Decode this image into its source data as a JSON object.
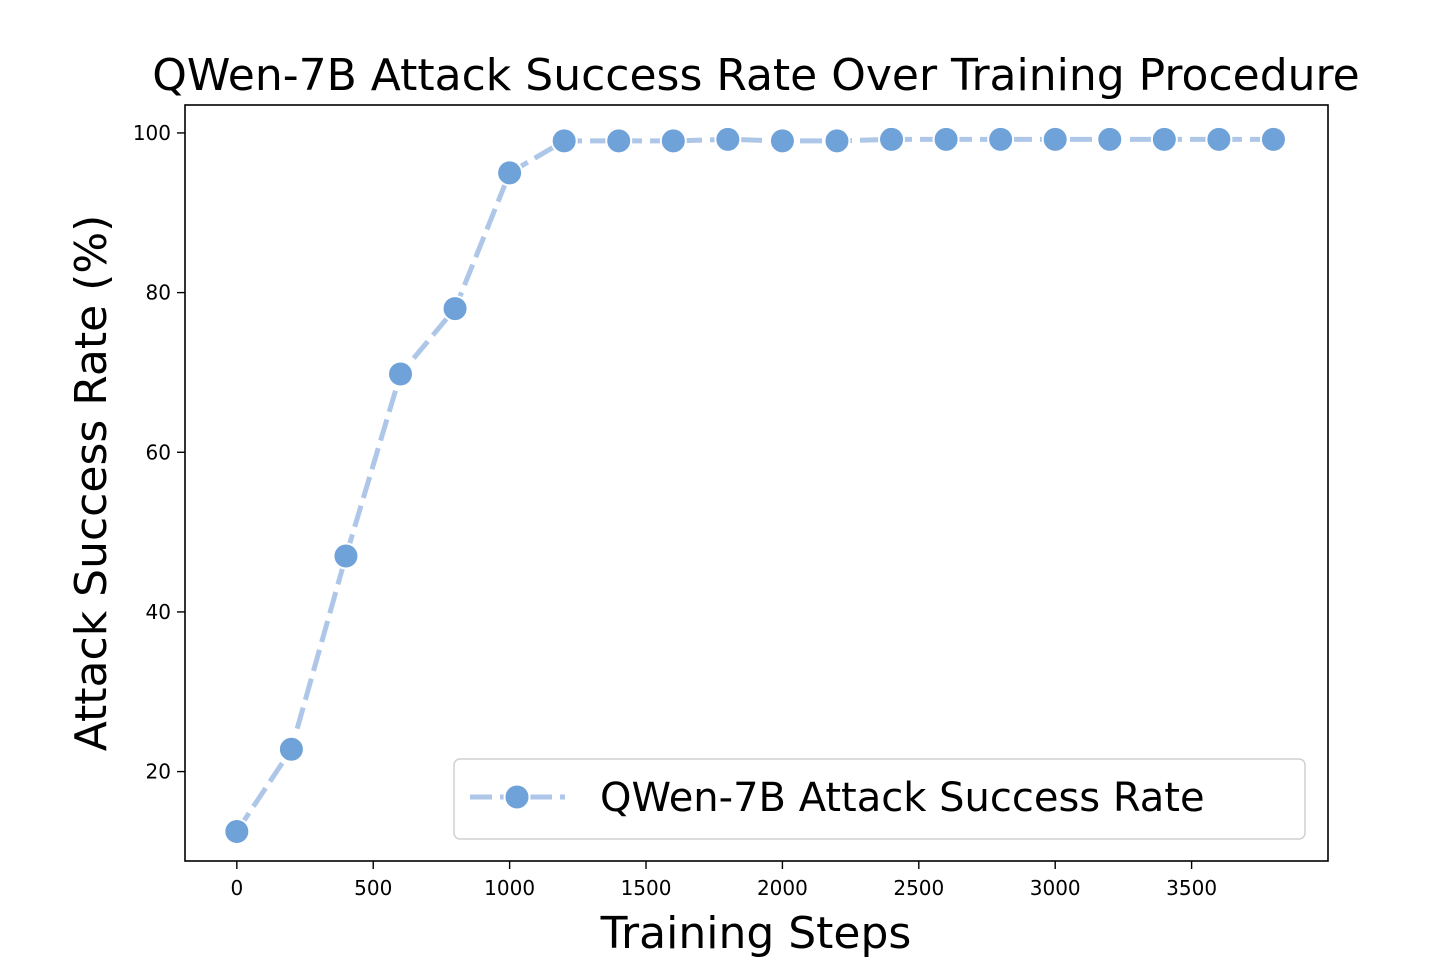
{
  "chart_data": {
    "type": "line",
    "title": "QWen-7B Attack Success Rate Over Training Procedure",
    "xlabel": "Training Steps",
    "ylabel": "Attack Success Rate (%)",
    "xlim": [
      -190,
      4000
    ],
    "ylim": [
      8.8,
      103.5
    ],
    "xticks": [
      0,
      500,
      1000,
      1500,
      2000,
      2500,
      3000,
      3500
    ],
    "yticks": [
      20,
      40,
      60,
      80,
      100
    ],
    "legend_position": "lower-right",
    "grid": false,
    "series": [
      {
        "name": "QWen-7B Attack Success Rate",
        "color": "#6fa2d8",
        "line_color": "#aec7e8",
        "marker": "circle",
        "x": [
          0,
          200,
          400,
          600,
          800,
          1000,
          1200,
          1400,
          1600,
          1800,
          2000,
          2200,
          2400,
          2600,
          2800,
          3000,
          3200,
          3400,
          3600,
          3800
        ],
        "y": [
          12.5,
          22.8,
          47.0,
          69.8,
          78.0,
          95.0,
          99.0,
          99.0,
          99.0,
          99.2,
          99.0,
          99.0,
          99.2,
          99.2,
          99.2,
          99.2,
          99.2,
          99.2,
          99.2,
          99.2
        ]
      }
    ]
  }
}
